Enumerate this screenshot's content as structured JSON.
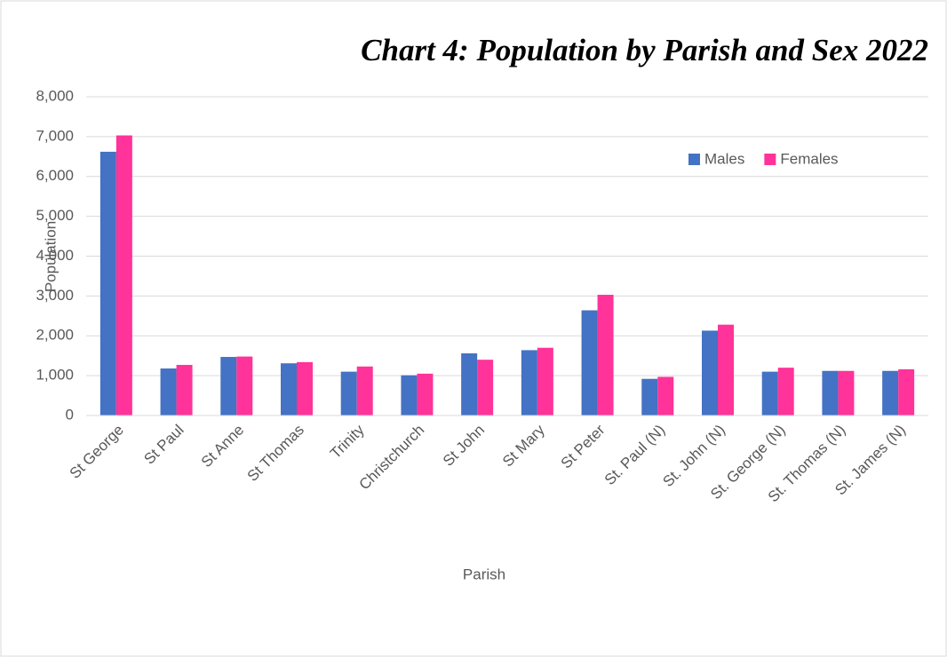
{
  "chart_data": {
    "type": "bar",
    "title": "Chart 4: Population by Parish and Sex 2022",
    "x_label": "Parish",
    "y_label": "Population",
    "categories": [
      "St George",
      "St Paul",
      "St Anne",
      "St Thomas",
      "Trinity",
      "Christchurch",
      "St John",
      "St Mary",
      "St Peter",
      "St. Paul (N)",
      "St. John (N)",
      "St. George (N)",
      "St. Thomas (N)",
      "St. James (N)"
    ],
    "series": [
      {
        "name": "Males",
        "color": "#4472c4",
        "values": [
          6620,
          1180,
          1470,
          1310,
          1100,
          1010,
          1560,
          1640,
          2640,
          920,
          2130,
          1100,
          1120,
          1120
        ]
      },
      {
        "name": "Females",
        "color": "#ff3399",
        "values": [
          7030,
          1270,
          1480,
          1340,
          1230,
          1050,
          1400,
          1700,
          3030,
          970,
          2280,
          1200,
          1120,
          1160
        ]
      }
    ],
    "ylim": [
      0,
      8000
    ],
    "yticks": [
      0,
      {
        "value": 1000,
        "label": "1,000"
      },
      {
        "value": 2000,
        "label": "2,000"
      },
      {
        "value": 3000,
        "label": "3,000"
      },
      {
        "value": 4000,
        "label": "4,000"
      },
      {
        "value": 5000,
        "label": "5,000"
      },
      {
        "value": 6000,
        "label": "6,000"
      },
      {
        "value": 7000,
        "label": "7,000"
      },
      {
        "value": 8000,
        "label": "8,000"
      }
    ],
    "grid": true,
    "legend": "upper right"
  }
}
